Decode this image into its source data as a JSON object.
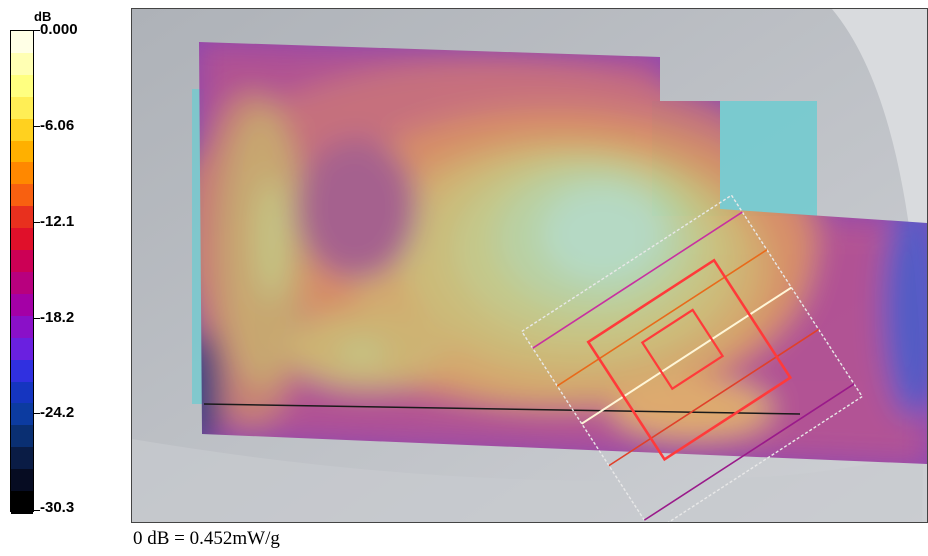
{
  "chart_data": {
    "type": "heatmap",
    "title": "",
    "colorbar": {
      "unit_label": "dB",
      "ticks": [
        "0.000",
        "-6.06",
        "-12.1",
        "-18.2",
        "-24.2",
        "-30.3"
      ],
      "tick_values": [
        0.0,
        -6.06,
        -12.1,
        -18.2,
        -24.2,
        -30.3
      ],
      "range": [
        -30.3,
        0.0
      ],
      "colors": [
        "#ffffe6",
        "#ffffb3",
        "#ffff80",
        "#ffee55",
        "#ffd11f",
        "#ffb000",
        "#ff8800",
        "#f86010",
        "#e8301e",
        "#e0102a",
        "#cc0055",
        "#b8007e",
        "#a400a6",
        "#8a10c8",
        "#6a20e0",
        "#3030e0",
        "#1535c0",
        "#0c3ba0",
        "#0a2f72",
        "#0a1c45",
        "#060c22",
        "#000000"
      ]
    },
    "reference": "0 dB = 0.452mW/g"
  }
}
